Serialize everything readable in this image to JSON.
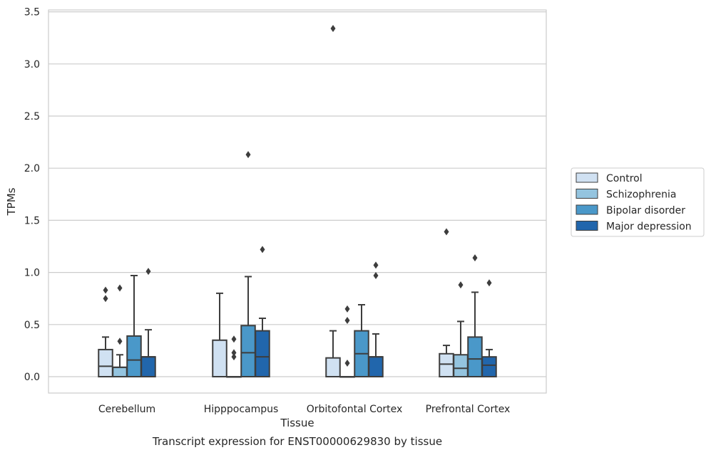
{
  "chart_data": {
    "type": "box",
    "title": "Transcript expression for ENST00000629830 by tissue",
    "xlabel": "Tissue",
    "ylabel": "TPMs",
    "ylim": [
      -0.16,
      3.52
    ],
    "yticks": [
      "0.0",
      "0.5",
      "1.0",
      "1.5",
      "2.0",
      "2.5",
      "3.0",
      "3.5"
    ],
    "grid": true,
    "legend_position": "right",
    "categories": [
      "Cerebellum",
      "Hipppocampus",
      "Orbitofontal Cortex",
      "Prefrontal Cortex"
    ],
    "series": [
      {
        "name": "Control",
        "color": "#d0e1f2",
        "boxes": [
          {
            "q1": 0.0,
            "median": 0.1,
            "q3": 0.26,
            "whisker_low": 0.0,
            "whisker_high": 0.38,
            "outliers": [
              0.75,
              0.83
            ]
          },
          {
            "q1": 0.0,
            "median": 0.0,
            "q3": 0.35,
            "whisker_low": 0.0,
            "whisker_high": 0.8,
            "outliers": []
          },
          {
            "q1": 0.0,
            "median": 0.0,
            "q3": 0.18,
            "whisker_low": 0.0,
            "whisker_high": 0.44,
            "outliers": [
              3.34
            ]
          },
          {
            "q1": 0.0,
            "median": 0.12,
            "q3": 0.22,
            "whisker_low": 0.0,
            "whisker_high": 0.3,
            "outliers": [
              1.39
            ]
          }
        ]
      },
      {
        "name": "Schizophrenia",
        "color": "#94c4df",
        "boxes": [
          {
            "q1": 0.0,
            "median": 0.09,
            "q3": 0.09,
            "whisker_low": 0.0,
            "whisker_high": 0.21,
            "outliers": [
              0.34,
              0.85
            ]
          },
          {
            "q1": 0.0,
            "median": 0.0,
            "q3": 0.0,
            "whisker_low": 0.0,
            "whisker_high": 0.0,
            "outliers": [
              0.19,
              0.23,
              0.36
            ]
          },
          {
            "q1": 0.0,
            "median": 0.0,
            "q3": 0.0,
            "whisker_low": 0.0,
            "whisker_high": 0.0,
            "outliers": [
              0.13,
              0.54,
              0.65
            ]
          },
          {
            "q1": 0.0,
            "median": 0.08,
            "q3": 0.21,
            "whisker_low": 0.0,
            "whisker_high": 0.53,
            "outliers": [
              0.88
            ]
          }
        ]
      },
      {
        "name": "Bipolar disorder",
        "color": "#4a98c9",
        "boxes": [
          {
            "q1": 0.0,
            "median": 0.16,
            "q3": 0.39,
            "whisker_low": 0.0,
            "whisker_high": 0.97,
            "outliers": []
          },
          {
            "q1": 0.0,
            "median": 0.23,
            "q3": 0.49,
            "whisker_low": 0.0,
            "whisker_high": 0.96,
            "outliers": [
              2.13
            ]
          },
          {
            "q1": 0.0,
            "median": 0.22,
            "q3": 0.44,
            "whisker_low": 0.0,
            "whisker_high": 0.69,
            "outliers": []
          },
          {
            "q1": 0.0,
            "median": 0.17,
            "q3": 0.38,
            "whisker_low": 0.0,
            "whisker_high": 0.81,
            "outliers": [
              1.14
            ]
          }
        ]
      },
      {
        "name": "Major depression",
        "color": "#2166ac",
        "boxes": [
          {
            "q1": 0.0,
            "median": 0.19,
            "q3": 0.19,
            "whisker_low": 0.0,
            "whisker_high": 0.45,
            "outliers": [
              1.01
            ]
          },
          {
            "q1": 0.0,
            "median": 0.19,
            "q3": 0.44,
            "whisker_low": 0.0,
            "whisker_high": 0.56,
            "outliers": [
              1.22
            ]
          },
          {
            "q1": 0.0,
            "median": 0.19,
            "q3": 0.19,
            "whisker_low": 0.0,
            "whisker_high": 0.41,
            "outliers": [
              0.97,
              1.07
            ]
          },
          {
            "q1": 0.0,
            "median": 0.11,
            "q3": 0.19,
            "whisker_low": 0.0,
            "whisker_high": 0.26,
            "outliers": [
              0.9
            ]
          }
        ]
      }
    ]
  }
}
